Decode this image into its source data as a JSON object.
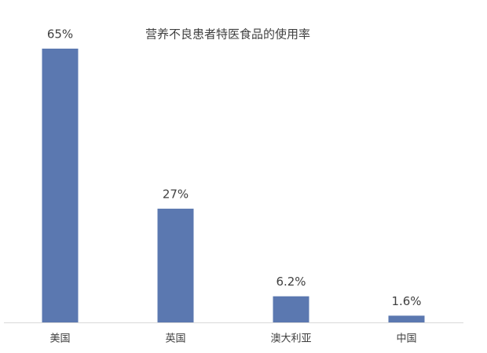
{
  "chart_data": {
    "type": "bar",
    "title": "营养不良患者特医食品的使用率",
    "categories": [
      "美国",
      "英国",
      "澳大利亚",
      "中国"
    ],
    "values": [
      65,
      27,
      6.2,
      1.6
    ],
    "value_labels": [
      "65%",
      "27%",
      "6.2%",
      "1.6%"
    ],
    "color": "#5b78b0"
  }
}
